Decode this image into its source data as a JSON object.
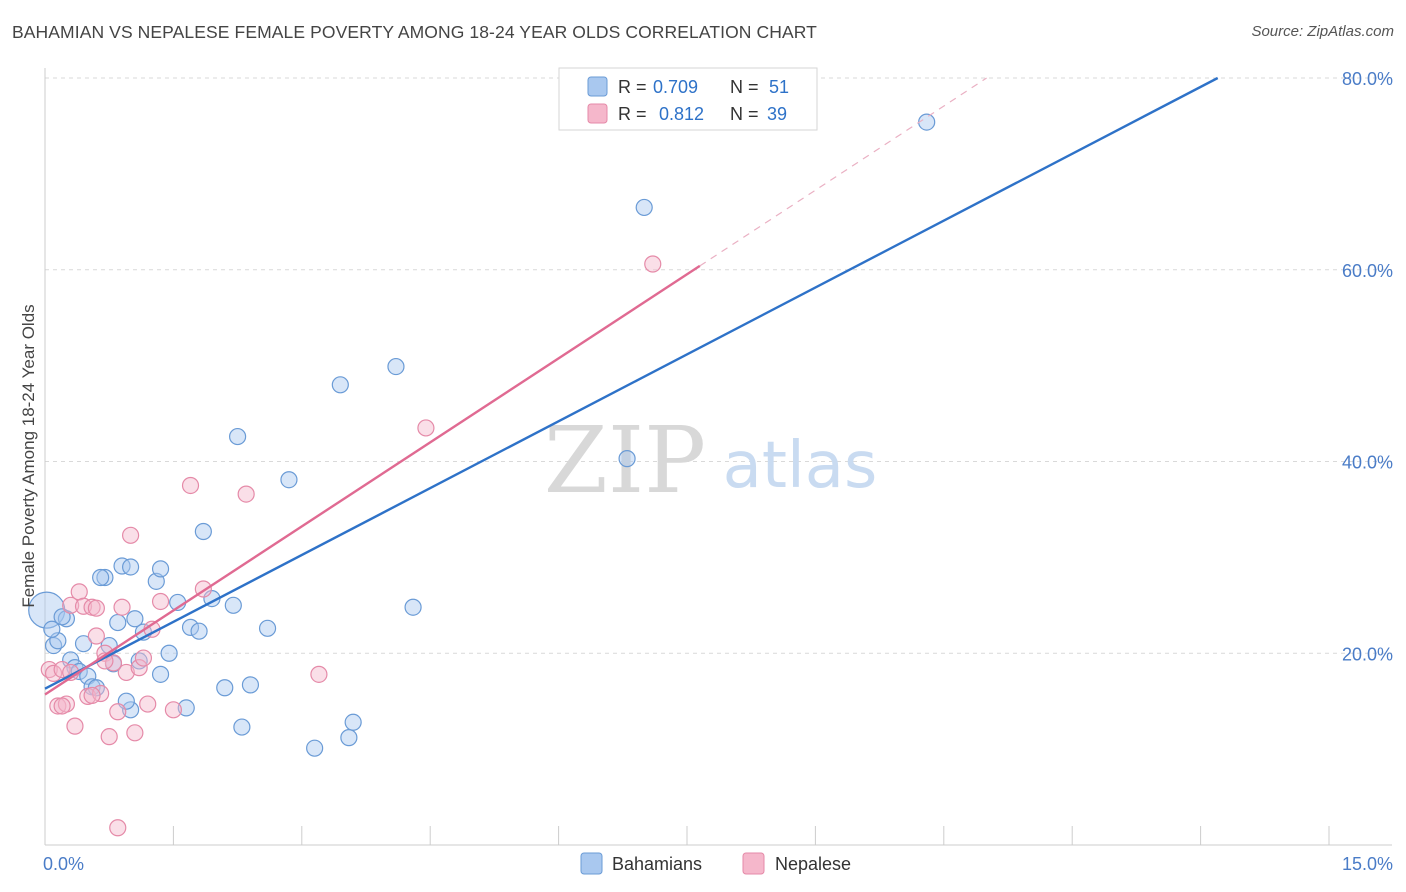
{
  "title": "BAHAMIAN VS NEPALESE FEMALE POVERTY AMONG 18-24 YEAR OLDS CORRELATION CHART",
  "source": "Source: ZipAtlas.com",
  "watermark": {
    "zip": "ZIP",
    "atlas": "atlas"
  },
  "colors": {
    "blue_fill": "#a9c8ef",
    "blue_stroke": "#6a9bd6",
    "blue_line": "#2e72c8",
    "pink_fill": "#f5b7cb",
    "pink_stroke": "#e58aa8",
    "pink_line": "#e06a92",
    "axis_text": "#4a7cc7",
    "grid": "#d9d9d9"
  },
  "legend": {
    "rows": [
      {
        "r_label": "R =",
        "r_value": "0.709",
        "n_label": "N =",
        "n_value": "51"
      },
      {
        "r_label": "R =",
        "r_value": "0.812",
        "n_label": "N =",
        "n_value": "39"
      }
    ]
  },
  "chart_data": {
    "type": "scatter",
    "title": "BAHAMIAN VS NEPALESE FEMALE POVERTY AMONG 18-24 YEAR OLDS CORRELATION CHART",
    "xlabel": "",
    "ylabel": "Female Poverty Among 18-24 Year Olds",
    "xlim": [
      0,
      15
    ],
    "ylim": [
      0,
      80
    ],
    "x_tick_labels": [
      "0.0%",
      "15.0%"
    ],
    "y_ticks": [
      20,
      40,
      60,
      80
    ],
    "y_tick_labels": [
      "20.0%",
      "40.0%",
      "60.0%",
      "80.0%"
    ],
    "legend_position": "bottom-center",
    "series": [
      {
        "name": "Bahamians",
        "points": [
          [
            0.02,
            24.5
          ],
          [
            0.1,
            20.8
          ],
          [
            0.15,
            21.3
          ],
          [
            0.25,
            23.6
          ],
          [
            0.3,
            19.3
          ],
          [
            0.35,
            18.5
          ],
          [
            0.4,
            18.1
          ],
          [
            0.45,
            21.0
          ],
          [
            0.5,
            17.6
          ],
          [
            0.55,
            16.5
          ],
          [
            0.6,
            16.4
          ],
          [
            0.7,
            27.9
          ],
          [
            0.75,
            20.8
          ],
          [
            0.8,
            18.9
          ],
          [
            0.85,
            23.2
          ],
          [
            0.9,
            29.1
          ],
          [
            1.0,
            14.1
          ],
          [
            1.05,
            23.6
          ],
          [
            1.1,
            19.2
          ],
          [
            1.15,
            22.2
          ],
          [
            1.3,
            27.5
          ],
          [
            1.35,
            17.8
          ],
          [
            1.45,
            20.0
          ],
          [
            1.55,
            25.3
          ],
          [
            1.7,
            22.7
          ],
          [
            1.8,
            22.3
          ],
          [
            1.85,
            32.7
          ],
          [
            1.95,
            25.7
          ],
          [
            2.1,
            16.4
          ],
          [
            2.2,
            25.0
          ],
          [
            2.25,
            42.6
          ],
          [
            2.3,
            12.3
          ],
          [
            2.4,
            16.7
          ],
          [
            2.6,
            22.6
          ],
          [
            2.85,
            38.1
          ],
          [
            3.15,
            10.1
          ],
          [
            3.45,
            48.0
          ],
          [
            3.55,
            11.2
          ],
          [
            3.6,
            12.8
          ],
          [
            4.1,
            49.9
          ],
          [
            4.3,
            24.8
          ],
          [
            6.8,
            40.3
          ],
          [
            7.0,
            66.5
          ],
          [
            10.3,
            75.4
          ],
          [
            0.08,
            22.5
          ],
          [
            0.2,
            23.8
          ],
          [
            0.65,
            27.9
          ],
          [
            1.0,
            29.0
          ],
          [
            1.35,
            28.8
          ],
          [
            1.65,
            14.3
          ],
          [
            0.95,
            15.0
          ]
        ],
        "trend": {
          "x0": 0,
          "y0": 16.3,
          "x1": 13.7,
          "y1": 80.0
        }
      },
      {
        "name": "Nepalese",
        "points": [
          [
            0.05,
            18.3
          ],
          [
            0.1,
            17.9
          ],
          [
            0.15,
            14.5
          ],
          [
            0.2,
            18.3
          ],
          [
            0.25,
            14.7
          ],
          [
            0.3,
            25.0
          ],
          [
            0.35,
            12.4
          ],
          [
            0.4,
            26.4
          ],
          [
            0.45,
            24.9
          ],
          [
            0.5,
            15.5
          ],
          [
            0.55,
            24.8
          ],
          [
            0.6,
            21.8
          ],
          [
            0.65,
            15.8
          ],
          [
            0.7,
            20.0
          ],
          [
            0.75,
            11.3
          ],
          [
            0.8,
            19.0
          ],
          [
            0.85,
            13.9
          ],
          [
            0.9,
            24.8
          ],
          [
            0.95,
            18.0
          ],
          [
            1.0,
            32.3
          ],
          [
            1.05,
            11.7
          ],
          [
            1.1,
            18.5
          ],
          [
            1.2,
            14.7
          ],
          [
            1.25,
            22.5
          ],
          [
            1.35,
            25.4
          ],
          [
            1.5,
            14.1
          ],
          [
            1.7,
            37.5
          ],
          [
            1.85,
            26.7
          ],
          [
            2.35,
            36.6
          ],
          [
            3.2,
            17.8
          ],
          [
            4.45,
            43.5
          ],
          [
            7.1,
            60.6
          ],
          [
            0.85,
            1.8
          ],
          [
            0.6,
            24.7
          ],
          [
            0.3,
            18.0
          ],
          [
            0.55,
            15.6
          ],
          [
            1.15,
            19.5
          ],
          [
            0.7,
            19.2
          ],
          [
            0.2,
            14.5
          ]
        ],
        "trend": {
          "x0": 0,
          "y0": 15.7,
          "x1": 7.65,
          "y1": 60.4
        },
        "trend_extension": {
          "x0": 7.65,
          "y0": 60.4,
          "x1": 11.0,
          "y1": 80.0
        }
      }
    ]
  }
}
